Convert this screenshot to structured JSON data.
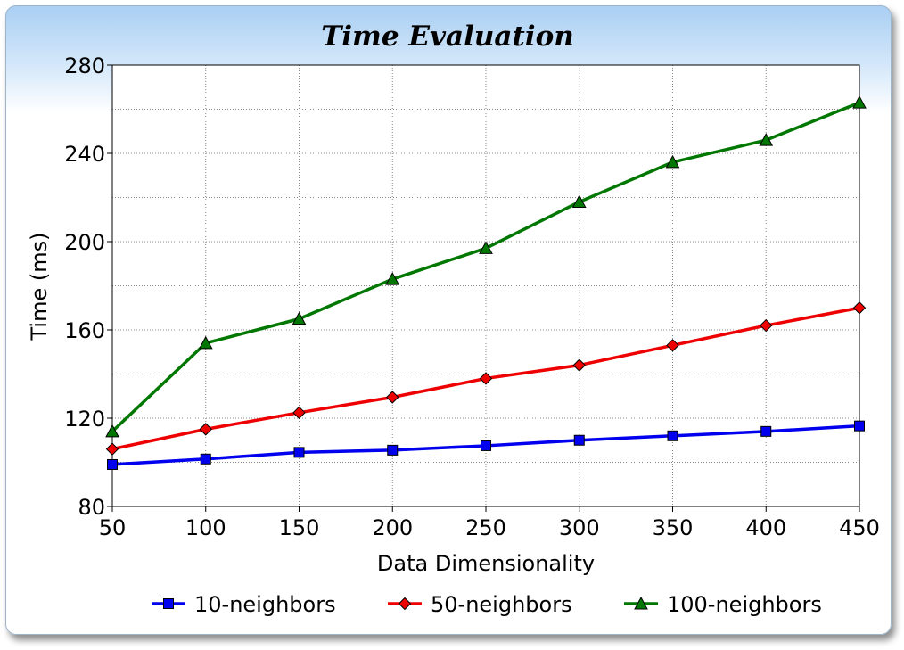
{
  "chart_data": {
    "type": "line",
    "title": "Time Evaluation",
    "xlabel": "Data Dimensionality",
    "ylabel": "Time (ms)",
    "x": [
      50,
      100,
      150,
      200,
      250,
      300,
      350,
      400,
      450
    ],
    "xlim": [
      50,
      450
    ],
    "ylim": [
      80,
      280
    ],
    "xticks": [
      "50",
      "100",
      "150",
      "200",
      "250",
      "300",
      "350",
      "400",
      "450"
    ],
    "yticks": [
      "80",
      "120",
      "160",
      "200",
      "240",
      "280"
    ],
    "grid": true,
    "legend_position": "bottom",
    "series": [
      {
        "name": "10-neighbors",
        "color": "#0000ee",
        "marker": "square",
        "values": [
          99,
          101.5,
          104.5,
          105.5,
          107.5,
          110,
          112,
          114,
          116.5
        ]
      },
      {
        "name": "50-neighbors",
        "color": "#ee0000",
        "marker": "diamond",
        "values": [
          106,
          115,
          122.5,
          129.5,
          138,
          144,
          153,
          162,
          170
        ]
      },
      {
        "name": "100-neighbors",
        "color": "#007700",
        "marker": "triangle",
        "values": [
          114,
          154,
          165,
          183,
          197,
          218,
          236,
          246,
          263
        ]
      }
    ]
  }
}
